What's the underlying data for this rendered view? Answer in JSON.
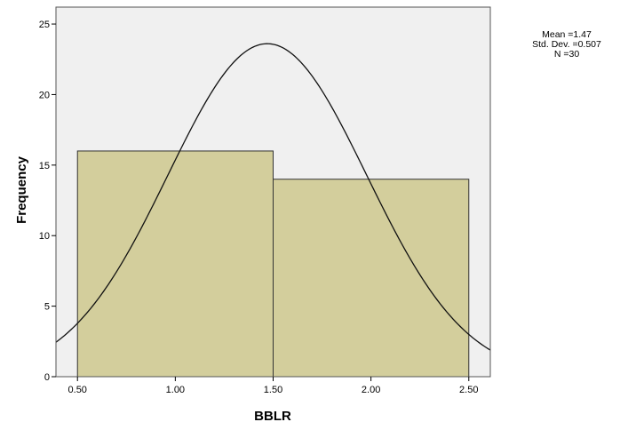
{
  "chart_data": {
    "type": "bar",
    "subtype": "histogram",
    "xlabel": "BBLR",
    "ylabel": "Frequency",
    "xlim": [
      0.39,
      2.61
    ],
    "ylim": [
      0,
      26.2
    ],
    "x_ticks": [
      "0.50",
      "1.00",
      "1.50",
      "2.00",
      "2.50"
    ],
    "y_ticks": [
      "0",
      "5",
      "10",
      "15",
      "20",
      "25"
    ],
    "bins": [
      {
        "range": [
          0.5,
          1.5
        ],
        "frequency": 16
      },
      {
        "range": [
          1.5,
          2.5
        ],
        "frequency": 14
      }
    ],
    "normal_curve": {
      "mean": 1.47,
      "sd": 0.507,
      "n": 30,
      "bin_width": 1.0
    },
    "stats_text": {
      "mean": "Mean =1.47",
      "sd": "Std. Dev. =0.507",
      "n": "N =30"
    },
    "colors": {
      "plot_background": "#f0f0f0",
      "bar_fill": "#d3ce9c",
      "bar_stroke": "#333333",
      "curve": "#111111",
      "frame": "#555555"
    },
    "grid": false,
    "legend": "none"
  }
}
